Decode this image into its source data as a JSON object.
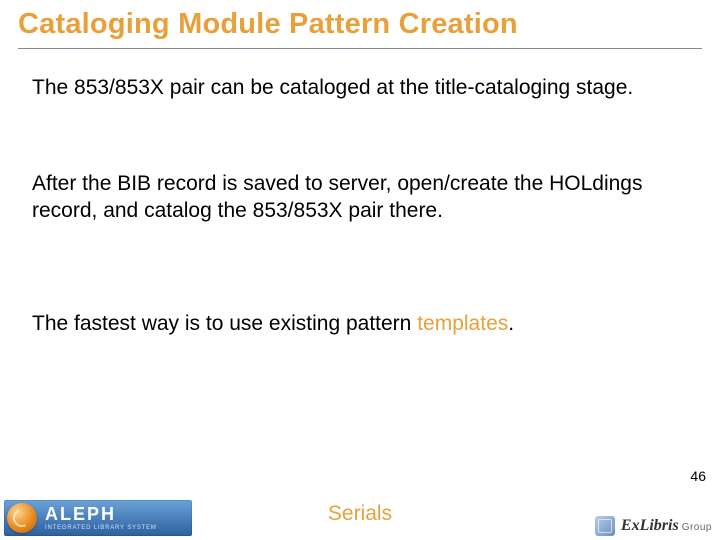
{
  "title": "Cataloging Module Pattern Creation",
  "paragraphs": {
    "p1": "The 853/853X pair can be cataloged at the title-cataloging stage.",
    "p2": "After the BIB record is saved to server, open/create the HOLdings record, and catalog the 853/853X pair there.",
    "p3_pre": "The fastest way is to use existing pattern ",
    "p3_accent": "templates",
    "p3_post": "."
  },
  "page_number": "46",
  "footer_title": "Serials",
  "colors": {
    "accent": "#e8a13a",
    "body_text": "#000000",
    "underline": "#888888",
    "background": "#ffffff"
  },
  "logo_left": {
    "brand": "ALEPH",
    "tagline": "INTEGRATED LIBRARY SYSTEM"
  },
  "logo_right": {
    "brand": "ExLibris",
    "suffix": "Group"
  }
}
